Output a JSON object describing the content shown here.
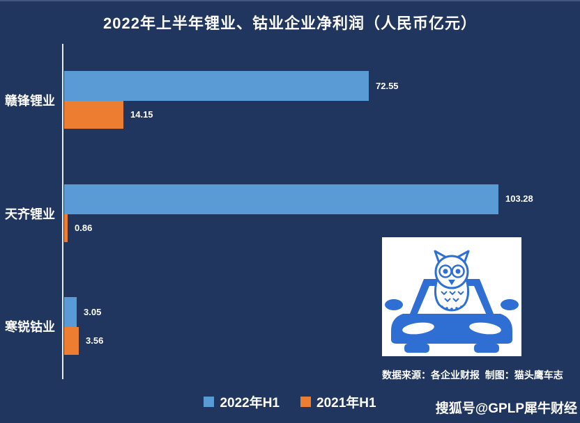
{
  "page": {
    "background_color": "#20365E",
    "bottom_edge_color": "#6F7E9E",
    "axis_color": "#E8EDF5",
    "text_color": "#FFFFFF"
  },
  "header": {
    "title": "2022年上半年锂业、钴业企业净利润（人民币亿元）"
  },
  "chart_data": {
    "type": "bar",
    "orientation": "horizontal",
    "title": "2022年上半年锂业、钴业企业净利润（人民币亿元）",
    "categories": [
      "赣锋锂业",
      "天齐锂业",
      "寒锐钴业"
    ],
    "series": [
      {
        "name": "2022年H1",
        "color": "#5B9BD5",
        "values": [
          72.55,
          103.28,
          3.05
        ]
      },
      {
        "name": "2021年H1",
        "color": "#ED7D31",
        "values": [
          14.15,
          0.86,
          3.56
        ]
      }
    ],
    "value_labels_shown": true,
    "xlabel": "",
    "ylabel": "",
    "xlim": [
      0,
      120
    ],
    "grid": false,
    "legend_position": "bottom"
  },
  "legend": {
    "items": [
      {
        "label": "2022年H1",
        "color": "#5B9BD5"
      },
      {
        "label": "2021年H1",
        "color": "#ED7D31"
      }
    ]
  },
  "footer": {
    "source_text": "数据来源：各企业财报  制图：猫头鹰车志",
    "watermark": "搜狐号@GPLP犀牛财经"
  },
  "logo": {
    "name": "owl-car-logo",
    "box_color": "#FFFFFF",
    "car_color": "#2F6FD4"
  }
}
